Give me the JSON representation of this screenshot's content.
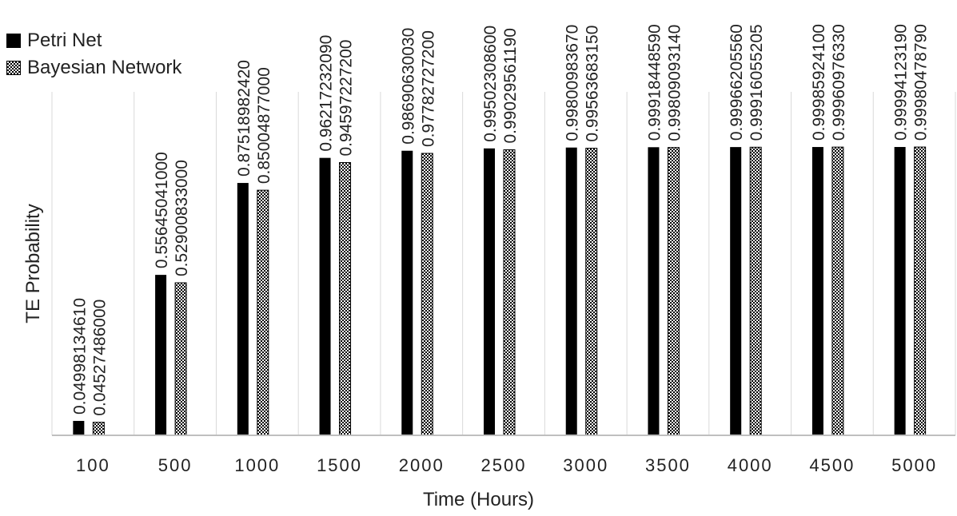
{
  "chart_data": {
    "type": "bar",
    "categories": [
      "100",
      "500",
      "1000",
      "1500",
      "2000",
      "2500",
      "3000",
      "3500",
      "4000",
      "4500",
      "5000"
    ],
    "series": [
      {
        "name": "Petri Net",
        "values": [
          0.0499813461,
          0.55645041,
          0.8751898242,
          0.9621723209,
          0.9869063003,
          0.995023086,
          0.9980098367,
          0.9991844859,
          0.9996620556,
          0.999859241,
          0.9999412319
        ],
        "labels": [
          "0.04998134610",
          "0.55645041000",
          "0.87518982420",
          "0.96217232090",
          "0.98690630030",
          "0.99502308600",
          "0.99800983670",
          "0.99918448590",
          "0.99966205560",
          "0.99985924100",
          "0.99994123190"
        ]
      },
      {
        "name": "Bayesian Network",
        "values": [
          0.04527486,
          0.52900833,
          0.85004877,
          0.945972272,
          0.977827272,
          0.9902956119,
          0.9956368315,
          0.9980909314,
          0.99916055205,
          0.9996097633,
          0.9998047879
        ],
        "labels": [
          "0.04527486000",
          "0.52900833000",
          "0.85004877000",
          "0.94597227200",
          "0.97782727200",
          "0.99029561190",
          "0.99563683150",
          "0.99809093140",
          "0.99916055205",
          "0.99960976330",
          "0.99980478790"
        ]
      }
    ],
    "xlabel": "Time (Hours)",
    "ylabel": "TE Probability",
    "ylim": [
      0,
      1.1
    ],
    "grid": "vertical",
    "legend": "top-left"
  },
  "colors": {
    "petri": "#000000",
    "bayes_fg": "#000000",
    "bayes_bg": "#ffffff",
    "grid": "#d9d9d9",
    "axis": "#bfbfbf"
  }
}
